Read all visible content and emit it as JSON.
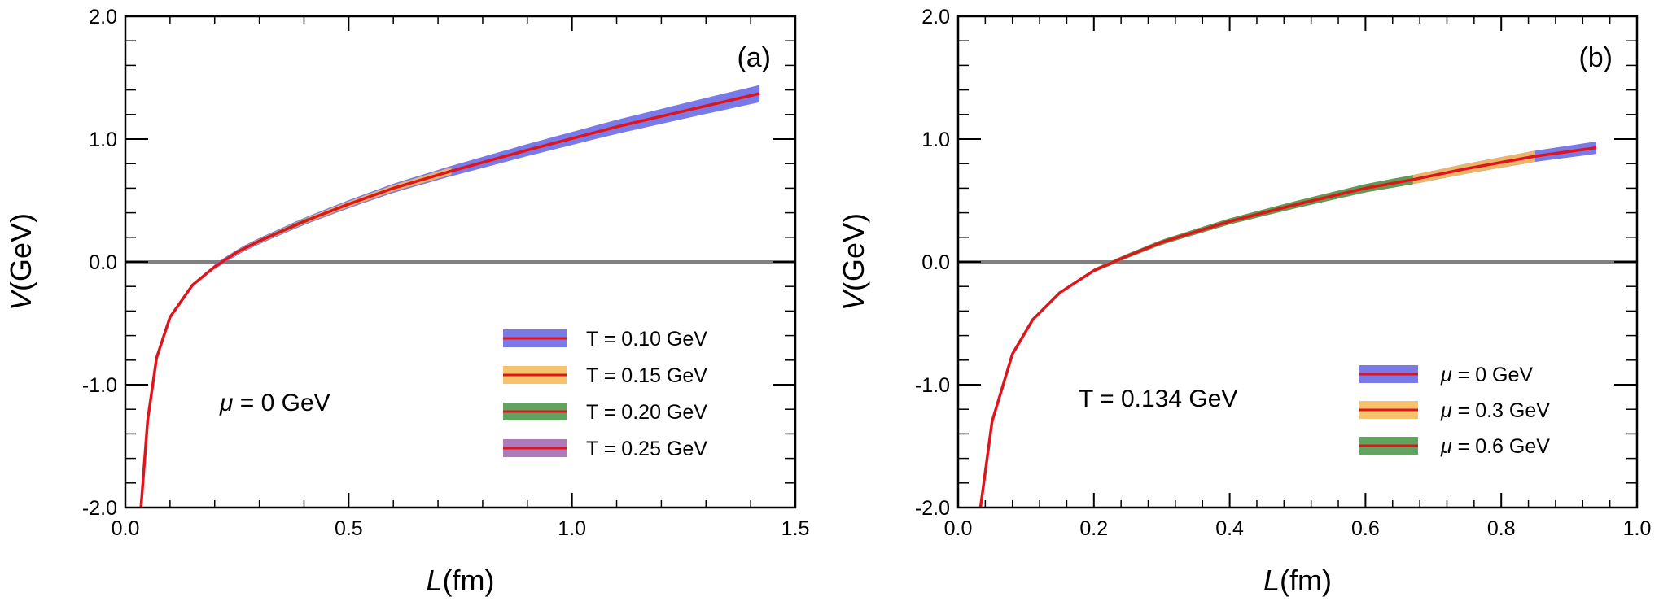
{
  "chart_data": [
    {
      "type": "line",
      "panel_tag": "(a)",
      "xlabel_var": "L",
      "xlabel_unit": "(fm)",
      "ylabel_var": "V",
      "ylabel_unit": "(GeV)",
      "xlim": [
        0.0,
        1.5
      ],
      "ylim": [
        -2.0,
        2.0
      ],
      "xticks": [
        0.0,
        0.5,
        1.0,
        1.5
      ],
      "xtick_labels": [
        "0.0",
        "0.5",
        "1.0",
        "1.5"
      ],
      "yticks": [
        -2.0,
        -1.0,
        0.0,
        1.0,
        2.0
      ],
      "ytick_labels": [
        "-2.0",
        "-1.0",
        "0.0",
        "1.0",
        "2.0"
      ],
      "annotation_var": "μ",
      "annotation_rest": " = 0 GeV",
      "legend_position": "bottom-right",
      "series": [
        {
          "name": "T = 0.10 GeV",
          "band_color": "#6a6ae6",
          "line_color": "#e0151b",
          "x_max": 1.42,
          "band_halfwidth": 0.07
        },
        {
          "name": "T = 0.15 GeV",
          "band_color": "#f5bd5c",
          "line_color": "#e0151b",
          "x_max": 0.73,
          "band_halfwidth": 0.05
        },
        {
          "name": "T = 0.20 GeV",
          "band_color": "#4f9a4f",
          "line_color": "#e0151b",
          "x_max": 0.41,
          "band_halfwidth": 0.04
        },
        {
          "name": "T = 0.25 GeV",
          "band_color": "#a66bb3",
          "line_color": "#e0151b",
          "x_max": 0.29,
          "band_halfwidth": 0.03
        }
      ],
      "potential": {
        "x": [
          0.035,
          0.05,
          0.07,
          0.1,
          0.15,
          0.2,
          0.25,
          0.3,
          0.4,
          0.5,
          0.6,
          0.73,
          0.9,
          1.1,
          1.3,
          1.42
        ],
        "y": [
          -2.0,
          -1.29,
          -0.78,
          -0.45,
          -0.19,
          -0.04,
          0.08,
          0.17,
          0.33,
          0.47,
          0.6,
          0.74,
          0.91,
          1.1,
          1.27,
          1.37
        ]
      }
    },
    {
      "type": "line",
      "panel_tag": "(b)",
      "xlabel_var": "L",
      "xlabel_unit": "(fm)",
      "ylabel_var": "V",
      "ylabel_unit": "(GeV)",
      "xlim": [
        0.0,
        1.0
      ],
      "ylim": [
        -2.0,
        2.0
      ],
      "xticks": [
        0.0,
        0.2,
        0.4,
        0.6,
        0.8,
        1.0
      ],
      "xtick_labels": [
        "0.0",
        "0.2",
        "0.4",
        "0.6",
        "0.8",
        "1.0"
      ],
      "yticks": [
        -2.0,
        -1.0,
        0.0,
        1.0,
        2.0
      ],
      "ytick_labels": [
        "-2.0",
        "-1.0",
        "0.0",
        "1.0",
        "2.0"
      ],
      "annotation_var": "",
      "annotation_rest": "T = 0.134 GeV",
      "legend_position": "bottom-right",
      "series": [
        {
          "name_var": "μ",
          "name_rest": " = 0 GeV",
          "band_color": "#6a6ae6",
          "line_color": "#e0151b",
          "x_max": 0.94,
          "band_halfwidth": 0.05
        },
        {
          "name_var": "μ",
          "name_rest": " = 0.3 GeV",
          "band_color": "#f5bd5c",
          "line_color": "#e0151b",
          "x_max": 0.85,
          "band_halfwidth": 0.05
        },
        {
          "name_var": "μ",
          "name_rest": " = 0.6 GeV",
          "band_color": "#4f9a4f",
          "line_color": "#e0151b",
          "x_max": 0.67,
          "band_halfwidth": 0.05
        }
      ],
      "potential": {
        "x": [
          0.033,
          0.05,
          0.08,
          0.11,
          0.15,
          0.2,
          0.25,
          0.3,
          0.4,
          0.5,
          0.6,
          0.67,
          0.75,
          0.85,
          0.94
        ],
        "y": [
          -2.0,
          -1.3,
          -0.75,
          -0.47,
          -0.25,
          -0.07,
          0.05,
          0.16,
          0.33,
          0.47,
          0.6,
          0.67,
          0.76,
          0.86,
          0.93
        ]
      }
    }
  ]
}
